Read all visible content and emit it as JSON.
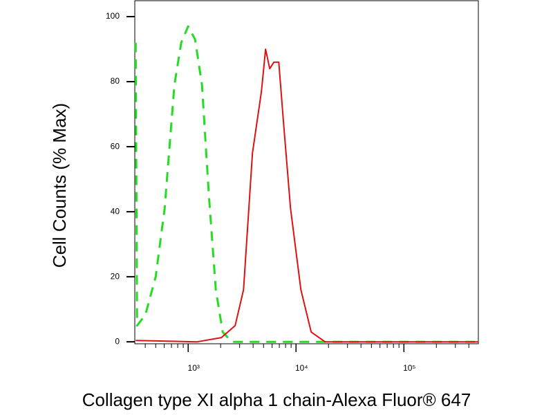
{
  "chart_data": {
    "type": "line",
    "xlabel": "Collagen type XI alpha 1 chain-Alexa Fluor® 647",
    "ylabel": "Cell Counts (% Max)",
    "xscale": "log",
    "xlim": [
      320,
      490000
    ],
    "ylim": [
      -0.6,
      104.9
    ],
    "xticks": [
      {
        "value": 1000,
        "label": "10³"
      },
      {
        "value": 10000,
        "label": "10⁴"
      },
      {
        "value": 100000,
        "label": "10⁵"
      }
    ],
    "xminor_ticks": [
      400,
      500,
      600,
      700,
      800,
      900,
      2000,
      3000,
      4000,
      5000,
      6000,
      7000,
      8000,
      9000,
      20000,
      30000,
      40000,
      50000,
      60000,
      70000,
      80000,
      90000,
      200000,
      300000,
      400000
    ],
    "yticks": [
      0,
      20,
      40,
      60,
      80,
      100
    ],
    "series": [
      {
        "color": "#22dd22",
        "dashed": true,
        "x": [
          326,
          336,
          401,
          500,
          605,
          745,
          863,
          1000,
          1159,
          1343,
          1556,
          1803,
          2092,
          2535,
          490000
        ],
        "values": [
          92,
          5,
          8.3,
          20,
          41,
          79,
          92,
          97,
          93,
          79,
          45,
          16,
          3,
          0,
          0
        ]
      },
      {
        "color": "#dd1111",
        "dashed": false,
        "x": [
          326,
          1211,
          2031,
          2728,
          3258,
          3945,
          4774,
          5221,
          5702,
          6232,
          6918,
          7674,
          8892,
          11090,
          13830,
          18570,
          490000
        ],
        "values": [
          0.4,
          0,
          1.3,
          5,
          16,
          58,
          77,
          90,
          84,
          86,
          86,
          67,
          41,
          16,
          3,
          0,
          0
        ]
      }
    ]
  }
}
